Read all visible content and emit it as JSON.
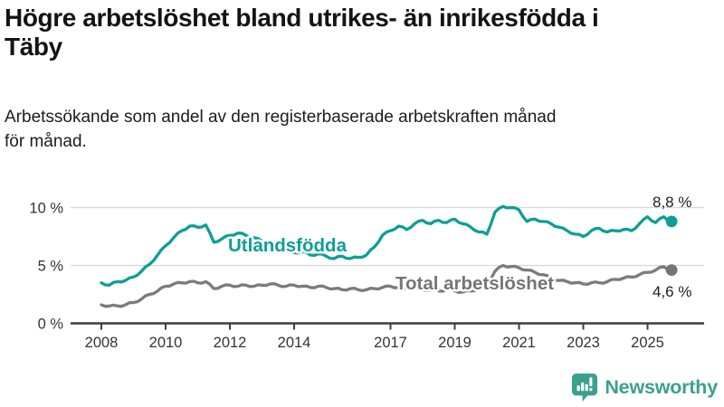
{
  "header": {
    "title_lines": [
      "Högre arbetslöshet bland utrikes- än inrikesfödda i",
      "Täby"
    ],
    "subtitle_lines": [
      "Arbetssökande som andel av den registerbaserade arbetskraften månad",
      "för månad."
    ]
  },
  "chart_data": {
    "type": "line",
    "title": "Högre arbetslöshet bland utrikes- än inrikesfödda i Täby",
    "subtitle": "Arbetssökande som andel av den registerbaserade arbetskraften månad för månad.",
    "xlabel": "",
    "ylabel": "",
    "x_start": 2008.0,
    "x_step": 0.25,
    "x_tick_years": [
      2008,
      2010,
      2012,
      2014,
      2017,
      2019,
      2021,
      2023,
      2025
    ],
    "y_ticks": [
      {
        "value": 0,
        "label": "0 %"
      },
      {
        "value": 5,
        "label": "5 %"
      },
      {
        "value": 10,
        "label": "10 %"
      }
    ],
    "ylim": [
      0,
      10.5
    ],
    "grid": true,
    "legend_position": "inline-labels",
    "series": [
      {
        "name": "Utlandsfödda",
        "color": "#0e9e95",
        "end_label": "8,8 %",
        "end_value": 8.8,
        "values": [
          3.5,
          3.3,
          3.6,
          3.7,
          4.0,
          4.5,
          5.1,
          5.9,
          6.7,
          7.4,
          8.0,
          8.4,
          8.3,
          8.5,
          7.0,
          7.3,
          7.6,
          7.8,
          7.6,
          7.4,
          7.1,
          6.8,
          6.5,
          6.3,
          6.1,
          6.2,
          5.9,
          6.0,
          5.8,
          5.6,
          5.8,
          5.6,
          5.7,
          5.9,
          6.6,
          7.6,
          8.0,
          8.4,
          8.1,
          8.6,
          8.9,
          8.6,
          8.9,
          8.7,
          9.0,
          8.6,
          8.3,
          7.9,
          7.7,
          9.6,
          10.1,
          10.0,
          9.8,
          8.8,
          9.0,
          8.8,
          8.6,
          8.3,
          8.0,
          7.7,
          7.5,
          8.0,
          8.2,
          7.9,
          8.0,
          8.1,
          8.0,
          8.6,
          9.2,
          8.7,
          9.2,
          8.8
        ]
      },
      {
        "name": "Total arbetslöshet",
        "color": "#7b7b7b",
        "end_label": "4,6 %",
        "end_value": 4.6,
        "values": [
          1.6,
          1.5,
          1.5,
          1.6,
          1.8,
          2.1,
          2.5,
          2.8,
          3.2,
          3.4,
          3.5,
          3.6,
          3.5,
          3.6,
          3.0,
          3.2,
          3.3,
          3.2,
          3.3,
          3.2,
          3.3,
          3.4,
          3.3,
          3.2,
          3.3,
          3.2,
          3.1,
          3.2,
          3.1,
          3.0,
          2.9,
          3.0,
          2.9,
          2.9,
          3.0,
          3.1,
          3.2,
          3.1,
          3.0,
          3.0,
          2.9,
          2.9,
          2.8,
          2.9,
          2.8,
          2.7,
          2.8,
          3.0,
          3.3,
          4.5,
          5.0,
          4.9,
          4.8,
          4.6,
          4.4,
          4.2,
          3.9,
          3.7,
          3.6,
          3.5,
          3.4,
          3.5,
          3.5,
          3.6,
          3.8,
          3.9,
          4.0,
          4.2,
          4.4,
          4.6,
          4.9,
          4.6
        ]
      }
    ]
  },
  "style": {
    "grid_color": "#d8d8d8",
    "axis_color": "#3d3d3d",
    "tick_label_color": "#333333",
    "value_label_color": "#1f1f1f",
    "series_label_colors": [
      "#0e9e95",
      "#757575"
    ]
  },
  "logo": {
    "text": "Newsworthy",
    "color": "#3aa18d"
  }
}
